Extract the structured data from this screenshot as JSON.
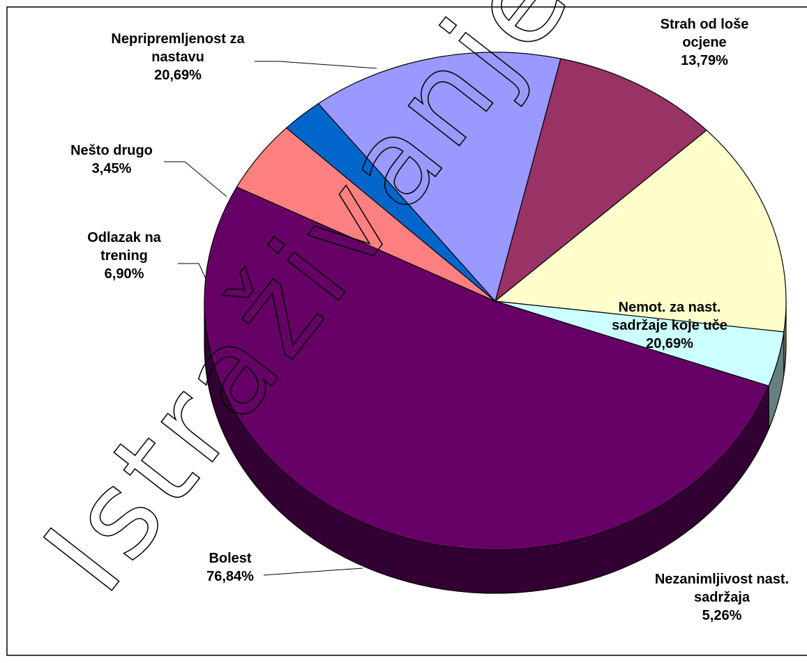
{
  "chart_data": {
    "type": "pie3d",
    "categories": [
      "Strah od loše ocjene",
      "Nemot. za nast. sadržaje koje uče",
      "Nezanimljivost nast. sadržaja",
      "Bolest",
      "Odlazak na trening",
      "Nešto drugo",
      "Nepripremljenost za nastavu"
    ],
    "values": [
      13.79,
      20.69,
      5.26,
      76.84,
      6.9,
      3.45,
      20.69
    ],
    "value_labels": [
      "13,79%",
      "20,69%",
      "5,26%",
      "76,84%",
      "6,90%",
      "3,45%",
      "20,69%"
    ],
    "colors": [
      "#993366",
      "#ffffcc",
      "#ccffff",
      "#660066",
      "#ff8080",
      "#0066cc",
      "#9999ff"
    ],
    "watermark": "Istraživanje"
  }
}
